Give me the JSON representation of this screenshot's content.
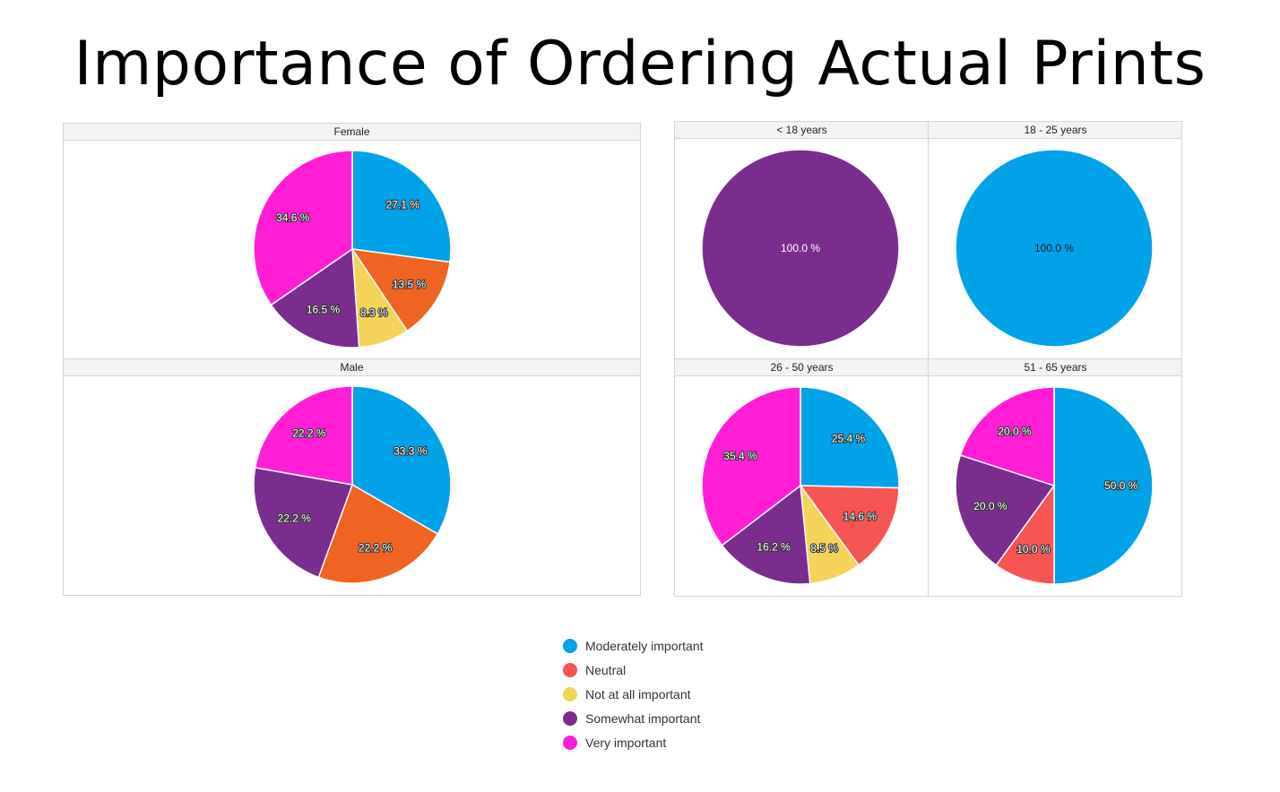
{
  "page": {
    "title": "Importance of Ordering Actual Prints"
  },
  "categories": [
    {
      "key": "moderately",
      "label": "Moderately important",
      "color": "#00a2e8"
    },
    {
      "key": "neutral",
      "label": "Neutral",
      "color": "#f75454"
    },
    {
      "key": "not_at_all",
      "label": "Not at all important",
      "color": "#f5d35b"
    },
    {
      "key": "somewhat",
      "label": "Somewhat important",
      "color": "#7b2d8e"
    },
    {
      "key": "very",
      "label": "Very important",
      "color": "#ff1ed6"
    }
  ],
  "extra_colors": {
    "male_neutral_orange": "#f06423",
    "female_neutral_orange": "#f06423"
  },
  "chart_data": [
    {
      "type": "pie",
      "title": "Female",
      "slices": [
        {
          "label": "Moderately important",
          "value": 27.1,
          "color": "#00a2e8",
          "text": "27.1 %"
        },
        {
          "label": "Neutral",
          "value": 13.5,
          "color": "#f06423",
          "text": "13.5 %"
        },
        {
          "label": "Not at all important",
          "value": 8.3,
          "color": "#f5d35b",
          "text": "8.3 %"
        },
        {
          "label": "Somewhat important",
          "value": 16.5,
          "color": "#7b2d8e",
          "text": "16.5 %"
        },
        {
          "label": "Very important",
          "value": 34.6,
          "color": "#ff1ed6",
          "text": "34.6 %"
        }
      ]
    },
    {
      "type": "pie",
      "title": "Male",
      "slices": [
        {
          "label": "Moderately important",
          "value": 33.3,
          "color": "#00a2e8",
          "text": "33.3 %"
        },
        {
          "label": "Neutral",
          "value": 22.2,
          "color": "#f06423",
          "text": "22.2 %"
        },
        {
          "label": "Somewhat important",
          "value": 22.2,
          "color": "#7b2d8e",
          "text": "22.2 %"
        },
        {
          "label": "Very important",
          "value": 22.2,
          "color": "#ff1ed6",
          "text": "22.2 %"
        }
      ]
    },
    {
      "type": "pie",
      "title": "< 18 years",
      "slices": [
        {
          "label": "Somewhat important",
          "value": 100.0,
          "color": "#7b2d8e",
          "text": "100.0 %"
        }
      ]
    },
    {
      "type": "pie",
      "title": "18 - 25 years",
      "slices": [
        {
          "label": "Moderately important",
          "value": 100.0,
          "color": "#00a2e8",
          "text": "100.0 %"
        }
      ]
    },
    {
      "type": "pie",
      "title": "26 - 50 years",
      "slices": [
        {
          "label": "Moderately important",
          "value": 25.4,
          "color": "#00a2e8",
          "text": "25.4 %"
        },
        {
          "label": "Neutral",
          "value": 14.6,
          "color": "#f75454",
          "text": "14.6 %"
        },
        {
          "label": "Not at all important",
          "value": 8.5,
          "color": "#f5d35b",
          "text": "8.5 %"
        },
        {
          "label": "Somewhat important",
          "value": 16.2,
          "color": "#7b2d8e",
          "text": "16.2 %"
        },
        {
          "label": "Very important",
          "value": 35.4,
          "color": "#ff1ed6",
          "text": "35.4 %"
        }
      ]
    },
    {
      "type": "pie",
      "title": "51 - 65 years",
      "slices": [
        {
          "label": "Moderately important",
          "value": 50.0,
          "color": "#00a2e8",
          "text": "50.0 %"
        },
        {
          "label": "Neutral",
          "value": 10.0,
          "color": "#f75454",
          "text": "10.0 %"
        },
        {
          "label": "Somewhat important",
          "value": 20.0,
          "color": "#7b2d8e",
          "text": "20.0 %"
        },
        {
          "label": "Very important",
          "value": 20.0,
          "color": "#ff1ed6",
          "text": "20.0 %"
        }
      ]
    }
  ]
}
